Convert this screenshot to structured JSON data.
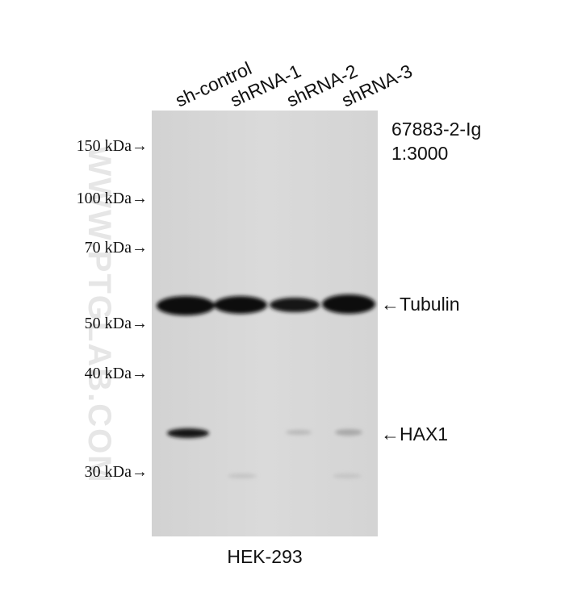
{
  "lanes": [
    "sh-control",
    "shRNA-1",
    "shRNA-2",
    "shRNA-3"
  ],
  "markers": [
    "150 kDa→",
    "100 kDa→",
    "70 kDa→",
    "50 kDa→",
    "40 kDa→",
    "30 kDa→"
  ],
  "antibody": {
    "catalog": "67883-2-Ig",
    "dilution": "1:3000"
  },
  "bands": [
    "←Tubulin",
    "←HAX1"
  ],
  "cell_line": "HEK-293",
  "watermark": "WWW.PTGLAB.COM"
}
